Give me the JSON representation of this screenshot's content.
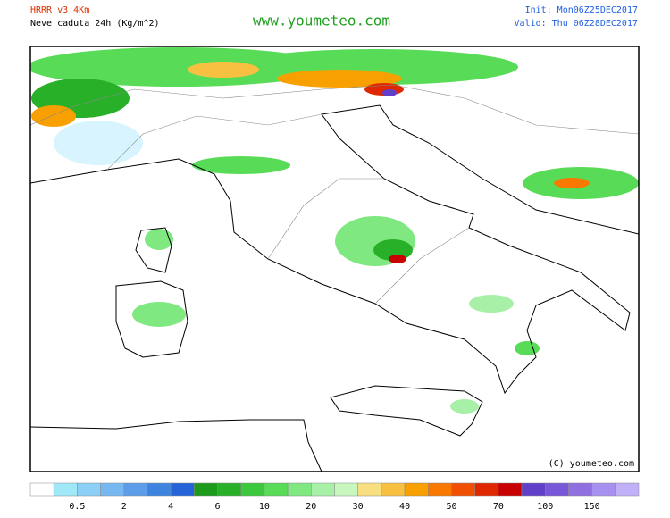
{
  "header": {
    "model": "HRRR v3 4Km",
    "field": "Neve caduta 24h (Kg/m^2)",
    "site": "www.youmeteo.com",
    "init": "Init: Mon06Z25DEC2017",
    "valid": "Valid: Thu 06Z28DEC2017"
  },
  "map": {
    "copyright": "(C) youmeteo.com"
  },
  "legend": {
    "colors": [
      "#ffffff",
      "#a0e8f8",
      "#8cd0f8",
      "#78b8f0",
      "#5c9ce8",
      "#3c84e0",
      "#2464d8",
      "#1c9a1c",
      "#28b028",
      "#3cc83c",
      "#58dc58",
      "#80e880",
      "#a8f0a8",
      "#c8f8c0",
      "#f8e080",
      "#f8c040",
      "#f8a000",
      "#f87800",
      "#f05000",
      "#e02800",
      "#c80000",
      "#6040c8",
      "#7858d8",
      "#9070e0",
      "#a890f0",
      "#c0b0f8"
    ],
    "labels": [
      "0.5",
      "2",
      "4",
      "6",
      "10",
      "20",
      "30",
      "40",
      "50",
      "70",
      "100",
      "150"
    ]
  }
}
